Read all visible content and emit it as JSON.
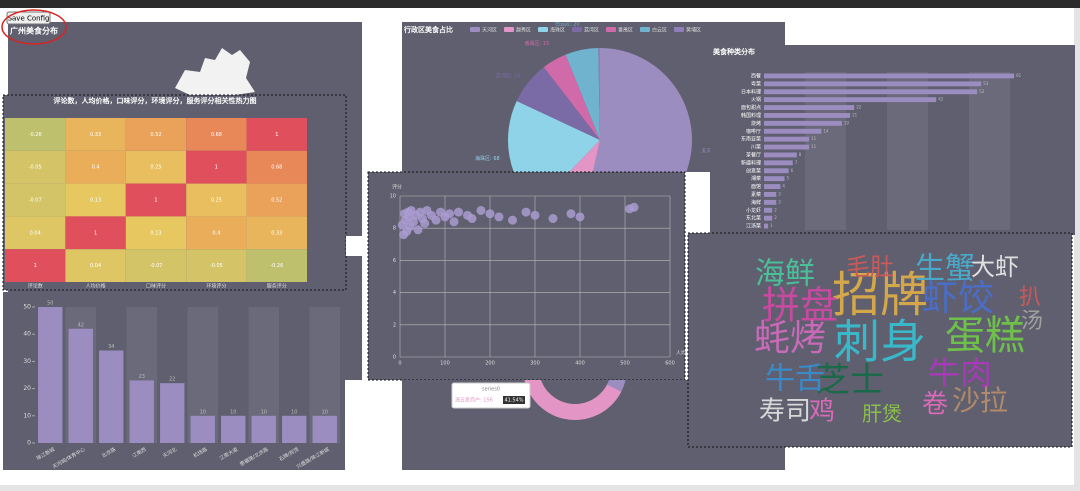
{
  "button": "Save Config",
  "chart_data": [
    {
      "type": "map",
      "title": "广州美食分布"
    },
    {
      "type": "heatmap",
      "title": "评论数，人均价格，口味评分，环境评分，服务评分相关性热力图",
      "categories": [
        "评论数",
        "人均价格",
        "口味评分",
        "环境评分",
        "服务评分"
      ],
      "values": [
        [
          -0.26,
          0.33,
          0.52,
          0.68,
          1
        ],
        [
          -0.05,
          0.4,
          0.25,
          1,
          0.68
        ],
        [
          -0.07,
          0.13,
          1,
          0.25,
          0.52
        ],
        [
          0.04,
          1,
          0.13,
          0.4,
          0.33
        ],
        [
          1,
          0.04,
          -0.07,
          -0.05,
          -0.26
        ]
      ]
    },
    {
      "type": "bar",
      "categories": [
        "珠江新城",
        "天河城/体育中心",
        "北京路",
        "江南西",
        "天河北",
        "机场路",
        "江南大道",
        "惠福路/北京路",
        "石牌/岗顶",
        "兴盛路/珠江新城"
      ],
      "values": [
        50,
        42,
        34,
        23,
        22,
        10,
        10,
        10,
        10,
        10
      ],
      "color": "#9b8dc0",
      "ylim": [
        0,
        50
      ],
      "yticks": [
        0,
        10,
        20,
        30,
        40,
        50
      ]
    },
    {
      "type": "pie",
      "title": "行政区美食占比",
      "categories": [
        "天河区",
        "越秀区",
        "海珠区",
        "荔湾区",
        "番禺区",
        "白云区",
        "黄埔区"
      ],
      "values": [
        184,
        30,
        68,
        26,
        15,
        20,
        1
      ],
      "value_labels": [
        "天河区: 184",
        "越秀区: 30",
        "海珠区: 68",
        "荔湾区: 26",
        "番禺区: 15",
        "白云区: 20",
        "黄埔区: 1"
      ],
      "colors": [
        "#9b8dc0",
        "#e396c6",
        "#8fd3e8",
        "#7a6aa6",
        "#d06aa8",
        "#6fb3cf",
        "#8f7fb8"
      ]
    },
    {
      "type": "hbar",
      "title": "美食种类分布",
      "categories": [
        "西餐",
        "粤菜",
        "日本料理",
        "火锅",
        "面包甜点",
        "韩国料理",
        "烧烤",
        "咖啡厅",
        "东南亚菜",
        "川菜",
        "茶餐厅",
        "新疆料理",
        "创意菜",
        "湘菜",
        "面馆",
        "素菜",
        "海鲜",
        "小龙虾",
        "东北菜",
        "江浙菜"
      ],
      "values": [
        61,
        53,
        52,
        42,
        22,
        21,
        19,
        14,
        11,
        11,
        8,
        7,
        6,
        5,
        4,
        3,
        3,
        2,
        2,
        1
      ],
      "color": "#9b8dc0",
      "xlim": [
        0,
        70
      ]
    },
    {
      "type": "scatter",
      "y_label": "评分",
      "x_label": "人均价格",
      "x": [
        5,
        8,
        10,
        12,
        15,
        18,
        20,
        22,
        25,
        30,
        35,
        40,
        45,
        50,
        55,
        60,
        70,
        80,
        90,
        100,
        110,
        120,
        130,
        150,
        160,
        180,
        200,
        220,
        250,
        280,
        300,
        340,
        380,
        400,
        510,
        520
      ],
      "y": [
        8.2,
        7.6,
        8.9,
        8.5,
        7.8,
        9.0,
        8.7,
        8.1,
        9.1,
        8.4,
        8.8,
        7.9,
        9.0,
        8.6,
        8.3,
        9.1,
        8.8,
        8.5,
        9.0,
        8.7,
        8.9,
        8.4,
        9.0,
        8.8,
        8.6,
        9.1,
        8.9,
        8.7,
        8.5,
        9.0,
        8.8,
        8.6,
        8.9,
        8.7,
        9.2,
        9.3
      ],
      "color": "#a99bd0",
      "xlim": [
        0,
        600
      ],
      "ylim": [
        0,
        10
      ],
      "xticks": [
        0,
        100,
        200,
        300,
        400,
        500,
        600
      ],
      "yticks": [
        0,
        2,
        4,
        6,
        8,
        10
      ]
    },
    {
      "type": "ring",
      "values": [
        156,
        219.5
      ],
      "colors": [
        "#e396c6",
        "#9b8dc0"
      ],
      "tooltip": {
        "series": "series0",
        "label": "海五星商户: 156",
        "percent": "41.54%"
      }
    },
    {
      "type": "wordcloud",
      "words": [
        "招牌",
        "刺身",
        "蛋糕",
        "拼盘",
        "虾饺",
        "蚝烤",
        "生蟹",
        "海鲜",
        "牛肉",
        "芝士",
        "牛舌",
        "寿司",
        "毛肚",
        "大虾",
        "沙拉",
        "鸡",
        "卷",
        "扒",
        "汤",
        "肝煲"
      ],
      "weights": [
        100,
        95,
        80,
        75,
        70,
        70,
        55,
        55,
        60,
        65,
        55,
        45,
        40,
        40,
        50,
        45,
        45,
        35,
        35,
        30
      ]
    }
  ]
}
